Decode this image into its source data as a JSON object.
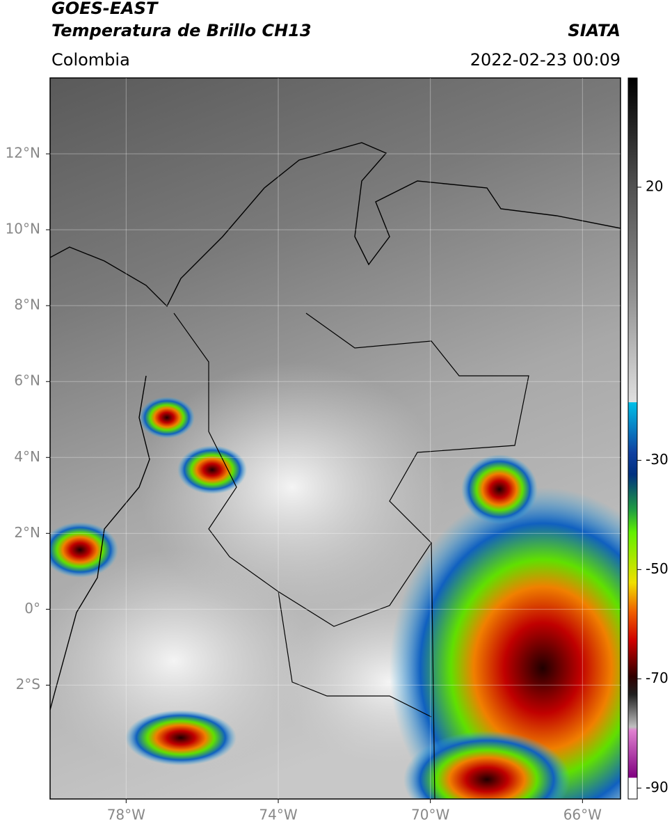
{
  "header": {
    "title": "GOES-EAST",
    "subtitle": "Temperatura de Brillo CH13",
    "region": "Colombia",
    "source": "SIATA",
    "datetime": "2022-02-23 00:09"
  },
  "map": {
    "xlim": [
      -80,
      -65
    ],
    "ylim": [
      -5,
      14
    ],
    "grid": true,
    "xticks": [
      {
        "value": -78,
        "label": "78°W"
      },
      {
        "value": -74,
        "label": "74°W"
      },
      {
        "value": -70,
        "label": "70°W"
      },
      {
        "value": -66,
        "label": "66°W"
      }
    ],
    "yticks": [
      {
        "value": 12,
        "label": "12°N"
      },
      {
        "value": 10,
        "label": "10°N"
      },
      {
        "value": 8,
        "label": "8°N"
      },
      {
        "value": 6,
        "label": "6°N"
      },
      {
        "value": 4,
        "label": "4°N"
      },
      {
        "value": 2,
        "label": "2°N"
      },
      {
        "value": 0,
        "label": "0°"
      },
      {
        "value": -2,
        "label": "2°S"
      }
    ]
  },
  "colorbar": {
    "lim": [
      -92,
      40
    ],
    "ticks": [
      20,
      -30,
      -50,
      -70,
      -90
    ]
  }
}
